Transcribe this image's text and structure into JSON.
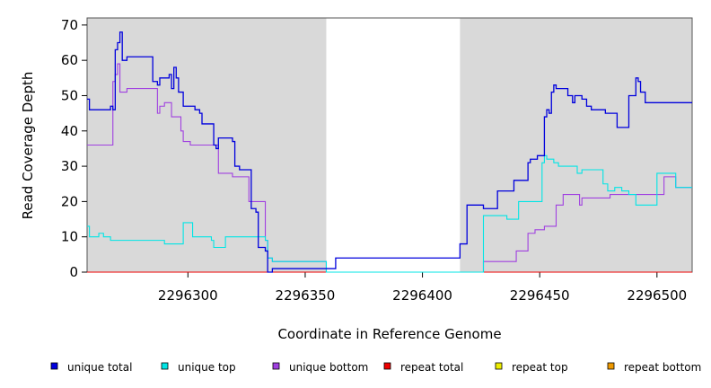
{
  "chart_data": {
    "type": "line",
    "step": true,
    "xlabel": "Coordinate in Reference Genome",
    "ylabel": "Read Coverage Depth",
    "xlim": [
      2296257,
      2296515
    ],
    "ylim": [
      0,
      72
    ],
    "xticks": [
      2296300,
      2296350,
      2296400,
      2296450,
      2296500
    ],
    "yticks": [
      0,
      10,
      20,
      30,
      40,
      50,
      60,
      70
    ],
    "background": "#d9d9d9",
    "gap_region": [
      2296359,
      2296416
    ],
    "gap_color": "#ffffff",
    "legend_position": "bottom",
    "series": [
      {
        "name": "unique total",
        "color": "#0000dd",
        "x": [
          2296257,
          2296258,
          2296267,
          2296268,
          2296269,
          2296270,
          2296271,
          2296272,
          2296274,
          2296283,
          2296285,
          2296287,
          2296288,
          2296292,
          2296293,
          2296294,
          2296295,
          2296296,
          2296298,
          2296303,
          2296304,
          2296305,
          2296306,
          2296311,
          2296312,
          2296313,
          2296319,
          2296320,
          2296322,
          2296327,
          2296329,
          2296330,
          2296333,
          2296334,
          2296336,
          2296359,
          2296363,
          2296416,
          2296419,
          2296426,
          2296432,
          2296439,
          2296441,
          2296445,
          2296446,
          2296449,
          2296452,
          2296453,
          2296454,
          2296455,
          2296456,
          2296457,
          2296460,
          2296462,
          2296464,
          2296465,
          2296466,
          2296468,
          2296470,
          2296472,
          2296478,
          2296479,
          2296481,
          2296483,
          2296484,
          2296488,
          2296491,
          2296492,
          2296493,
          2296495,
          2296499,
          2296508,
          2296509,
          2296512,
          2296515
        ],
        "y": [
          49,
          46,
          47,
          46,
          63,
          65,
          68,
          60,
          61,
          61,
          54,
          53,
          55,
          56,
          52,
          58,
          55,
          51,
          47,
          46,
          46,
          45,
          42,
          36,
          35,
          38,
          37,
          30,
          29,
          18,
          17,
          7,
          6,
          0,
          1,
          1,
          4,
          8,
          19,
          18,
          23,
          26,
          26,
          31,
          32,
          33,
          44,
          46,
          45,
          51,
          53,
          52,
          52,
          50,
          48,
          50,
          50,
          49,
          47,
          46,
          45,
          45,
          45,
          41,
          41,
          50,
          55,
          54,
          51,
          48,
          48,
          48,
          48,
          48,
          48
        ]
      },
      {
        "name": "unique top",
        "color": "#00e5e5",
        "x": [
          2296257,
          2296258,
          2296259,
          2296262,
          2296264,
          2296267,
          2296287,
          2296290,
          2296293,
          2296298,
          2296302,
          2296304,
          2296310,
          2296311,
          2296316,
          2296319,
          2296326,
          2296333,
          2296334,
          2296336,
          2296359,
          2296360,
          2296416,
          2296419,
          2296426,
          2296429,
          2296436,
          2296441,
          2296445,
          2296448,
          2296451,
          2296452,
          2296453,
          2296454,
          2296455,
          2296456,
          2296458,
          2296460,
          2296463,
          2296466,
          2296467,
          2296468,
          2296471,
          2296474,
          2296477,
          2296479,
          2296482,
          2296485,
          2296488,
          2296491,
          2296496,
          2296500,
          2296505,
          2296508,
          2296511,
          2296515
        ],
        "y": [
          13,
          10,
          10,
          11,
          10,
          9,
          9,
          8,
          8,
          14,
          10,
          10,
          9,
          7,
          10,
          10,
          10,
          9,
          4,
          3,
          0,
          0,
          0,
          0,
          16,
          16,
          15,
          20,
          20,
          20,
          31,
          33,
          32,
          32,
          32,
          31,
          30,
          30,
          30,
          28,
          28,
          29,
          29,
          29,
          25,
          23,
          24,
          23,
          22,
          19,
          19,
          28,
          28,
          24,
          24,
          24
        ]
      },
      {
        "name": "unique bottom",
        "color": "#a040e0",
        "x": [
          2296257,
          2296258,
          2296267,
          2296268,
          2296269,
          2296270,
          2296271,
          2296272,
          2296274,
          2296283,
          2296287,
          2296288,
          2296290,
          2296293,
          2296297,
          2296298,
          2296301,
          2296304,
          2296311,
          2296313,
          2296319,
          2296326,
          2296333,
          2296334,
          2296336,
          2296359,
          2296416,
          2296426,
          2296432,
          2296438,
          2296440,
          2296445,
          2296448,
          2296452,
          2296454,
          2296457,
          2296460,
          2296462,
          2296465,
          2296467,
          2296468,
          2296472,
          2296476,
          2296480,
          2296484,
          2296488,
          2296491,
          2296495,
          2296499,
          2296503,
          2296507,
          2296508,
          2296512,
          2296515
        ],
        "y": [
          36,
          36,
          36,
          54,
          56,
          59,
          51,
          51,
          52,
          52,
          45,
          47,
          48,
          44,
          40,
          37,
          36,
          36,
          36,
          28,
          27,
          20,
          9,
          4,
          3,
          0,
          0,
          3,
          3,
          3,
          6,
          11,
          12,
          13,
          13,
          19,
          22,
          22,
          22,
          19,
          21,
          21,
          21,
          22,
          22,
          22,
          22,
          22,
          22,
          27,
          27,
          24,
          24,
          24
        ]
      },
      {
        "name": "repeat total",
        "color": "#ee0000",
        "x": [
          2296257,
          2296515
        ],
        "y": [
          0,
          0
        ]
      },
      {
        "name": "repeat top",
        "color": "#eeee00",
        "x": [
          2296257,
          2296515
        ],
        "y": [
          0,
          0
        ]
      },
      {
        "name": "repeat bottom",
        "color": "#ee9900",
        "x": [
          2296257,
          2296515
        ],
        "y": [
          0,
          0
        ]
      }
    ]
  }
}
